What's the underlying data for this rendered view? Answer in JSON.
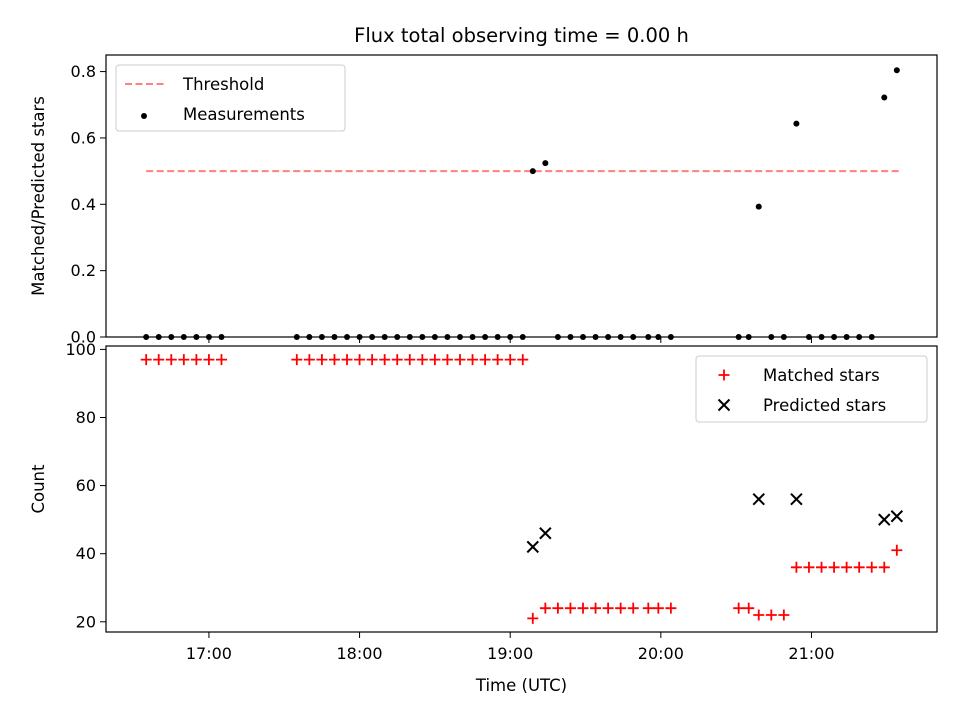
{
  "chart_data": [
    {
      "type": "scatter",
      "title": "Flux total observing time = 0.00 h",
      "xlabel": "",
      "ylabel": "Matched/Predicted stars",
      "ylim": [
        0,
        0.85
      ],
      "xlim": [
        "16:19",
        "21:50"
      ],
      "y_ticks": [
        0.0,
        0.2,
        0.4,
        0.6,
        0.8
      ],
      "y_tick_labels": [
        "0.0",
        "0.2",
        "0.4",
        "0.6",
        "0.8"
      ],
      "grid": false,
      "legend_position": "top-left",
      "series": [
        {
          "name": "Threshold",
          "style": "dashed-line",
          "color": "#ff8080",
          "x": [
            "16:35",
            "21:35"
          ],
          "y": [
            0.5,
            0.5
          ]
        },
        {
          "name": "Measurements",
          "style": "dot",
          "color": "#000000",
          "x": [
            "16:35",
            "16:40",
            "16:45",
            "16:50",
            "16:55",
            "17:00",
            "17:05",
            "17:35",
            "17:40",
            "17:45",
            "17:50",
            "17:55",
            "18:00",
            "18:05",
            "18:10",
            "18:15",
            "18:20",
            "18:25",
            "18:30",
            "18:35",
            "18:40",
            "18:45",
            "18:50",
            "18:55",
            "19:00",
            "19:05",
            "19:09",
            "19:14",
            "19:19",
            "19:24",
            "19:29",
            "19:34",
            "19:39",
            "19:44",
            "19:49",
            "19:55",
            "19:59",
            "20:04",
            "20:31",
            "20:35",
            "20:39",
            "20:44",
            "20:49",
            "20:54",
            "20:59",
            "21:04",
            "21:09",
            "21:14",
            "21:19",
            "21:24",
            "21:29",
            "21:34"
          ],
          "y": [
            0,
            0,
            0,
            0,
            0,
            0,
            0,
            0,
            0,
            0,
            0,
            0,
            0,
            0,
            0,
            0,
            0,
            0,
            0,
            0,
            0,
            0,
            0,
            0,
            0,
            0,
            0.5,
            0.524,
            0,
            0,
            0,
            0,
            0,
            0,
            0,
            0,
            0,
            0,
            0,
            0,
            0.393,
            0,
            0,
            0.643,
            0,
            0,
            0,
            0,
            0,
            0,
            0.722,
            0.804
          ]
        }
      ]
    },
    {
      "type": "scatter",
      "title": "",
      "xlabel": "Time (UTC)",
      "ylabel": "Count",
      "ylim": [
        17,
        101
      ],
      "xlim": [
        "16:19",
        "21:50"
      ],
      "y_ticks": [
        20,
        40,
        60,
        80,
        100
      ],
      "y_tick_labels": [
        "20",
        "40",
        "60",
        "80",
        "100"
      ],
      "x_ticks": [
        "17:00",
        "18:00",
        "19:00",
        "20:00",
        "21:00"
      ],
      "x_tick_labels": [
        "17:00",
        "18:00",
        "19:00",
        "20:00",
        "21:00"
      ],
      "grid": false,
      "legend_position": "top-right",
      "series": [
        {
          "name": "Matched stars",
          "marker": "plus",
          "color": "#ff0000",
          "x": [
            "16:35",
            "16:40",
            "16:45",
            "16:50",
            "16:55",
            "17:00",
            "17:05",
            "17:35",
            "17:40",
            "17:45",
            "17:50",
            "17:55",
            "18:00",
            "18:05",
            "18:10",
            "18:15",
            "18:20",
            "18:25",
            "18:30",
            "18:35",
            "18:40",
            "18:45",
            "18:50",
            "18:55",
            "19:00",
            "19:05",
            "19:09",
            "19:14",
            "19:19",
            "19:24",
            "19:29",
            "19:34",
            "19:39",
            "19:44",
            "19:49",
            "19:55",
            "19:59",
            "20:04",
            "20:31",
            "20:35",
            "20:39",
            "20:44",
            "20:49",
            "20:54",
            "20:59",
            "21:04",
            "21:09",
            "21:14",
            "21:19",
            "21:24",
            "21:29",
            "21:34"
          ],
          "y": [
            97,
            97,
            97,
            97,
            97,
            97,
            97,
            97,
            97,
            97,
            97,
            97,
            97,
            97,
            97,
            97,
            97,
            97,
            97,
            97,
            97,
            97,
            97,
            97,
            97,
            97,
            21,
            24,
            24,
            24,
            24,
            24,
            24,
            24,
            24,
            24,
            24,
            24,
            24,
            24,
            22,
            22,
            22,
            36,
            36,
            36,
            36,
            36,
            36,
            36,
            36,
            41
          ]
        },
        {
          "name": "Predicted stars",
          "marker": "x",
          "color": "#000000",
          "x": [
            "19:09",
            "19:14",
            "20:39",
            "20:54",
            "21:29",
            "21:34"
          ],
          "y": [
            42,
            46,
            56,
            56,
            50,
            51
          ]
        }
      ]
    }
  ]
}
